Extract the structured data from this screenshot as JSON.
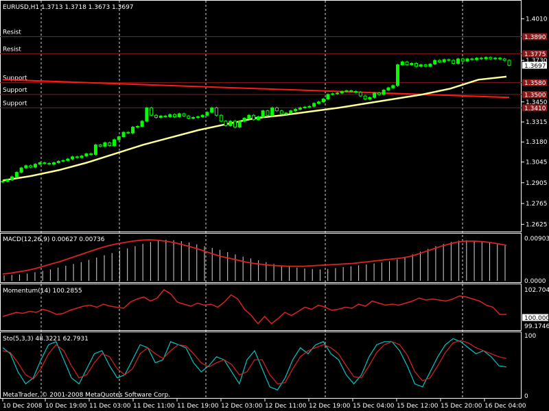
{
  "chart_data": {
    "type": "candlestick",
    "symbol_info": "EURUSD,H1  1.3713 1.3718 1.3673 1.3697",
    "price_axis": {
      "ylim": [
        1.259,
        1.41
      ],
      "ticks": [
        "1.4010",
        "1.3730",
        "1.3450",
        "1.3315",
        "1.3180",
        "1.3045",
        "1.2905",
        "1.2765",
        "1.2625"
      ],
      "current_price": "1.3697"
    },
    "horizontal_levels": [
      {
        "name": "Resist",
        "price": 1.389,
        "label": "1.3890"
      },
      {
        "name": "Resist",
        "price": 1.3775,
        "label": "1.3775"
      },
      {
        "name": "Support",
        "price": 1.358,
        "label": "1.3580"
      },
      {
        "name": "Support",
        "price": 1.35,
        "label": "1.3500"
      },
      {
        "name": "Support",
        "price": 1.341,
        "label": "1.3410"
      }
    ],
    "closes": [
      1.2915,
      1.2925,
      1.2945,
      1.2975,
      1.3005,
      1.302,
      1.301,
      1.303,
      1.304,
      1.3035,
      1.303,
      1.304,
      1.305,
      1.3055,
      1.3065,
      1.308,
      1.3075,
      1.3085,
      1.31,
      1.3095,
      1.316,
      1.315,
      1.3175,
      1.3155,
      1.3195,
      1.3215,
      1.3245,
      1.324,
      1.328,
      1.3285,
      1.332,
      1.341,
      1.336,
      1.3345,
      1.3355,
      1.335,
      1.3365,
      1.335,
      1.337,
      1.3355,
      1.334,
      1.3345,
      1.335,
      1.336,
      1.338,
      1.341,
      1.336,
      1.332,
      1.329,
      1.332,
      1.328,
      1.332,
      1.334,
      1.336,
      1.333,
      1.335,
      1.339,
      1.336,
      1.341,
      1.339,
      1.337,
      1.3375,
      1.339,
      1.34,
      1.341,
      1.3415,
      1.342,
      1.344,
      1.345,
      1.347,
      1.35,
      1.3505,
      1.351,
      1.352,
      1.3525,
      1.352,
      1.3515,
      1.349,
      1.347,
      1.348,
      1.351,
      1.35,
      1.353,
      1.3545,
      1.356,
      1.37,
      1.372,
      1.37,
      1.371,
      1.369,
      1.37,
      1.369,
      1.3705,
      1.373,
      1.372,
      1.3735,
      1.373,
      1.371,
      1.374,
      1.3725,
      1.374,
      1.3735,
      1.3745,
      1.374,
      1.375,
      1.374,
      1.3745,
      1.374,
      1.373,
      1.3697
    ],
    "moving_average": [
      1.292,
      1.295,
      1.299,
      1.304,
      1.31,
      1.316,
      1.321,
      1.326,
      1.33,
      1.334,
      1.336,
      1.3385,
      1.341,
      1.344,
      1.347,
      1.35,
      1.354,
      1.36,
      1.362
    ],
    "trend_line": {
      "from": [
        0,
        1.36
      ],
      "to": [
        109,
        1.348
      ]
    },
    "time_labels": [
      "10 Dec 2008",
      "10 Dec 19:00",
      "11 Dec 03:00",
      "11 Dec 11:00",
      "11 Dec 19:00",
      "12 Dec 03:00",
      "12 Dec 11:00",
      "12 Dec 19:00",
      "15 Dec 04:00",
      "15 Dec 12:00",
      "15 Dec 20:00",
      "16 Dec 04:00"
    ],
    "macd": {
      "label": "MACD(12,26,9) 0.00627 0.00736",
      "ticks": [
        "0.00903",
        "0.0000"
      ],
      "ylim": [
        0,
        0.0093
      ],
      "histogram": [
        0.0012,
        0.0013,
        0.0014,
        0.0016,
        0.0019,
        0.0022,
        0.0025,
        0.0029,
        0.0033,
        0.0037,
        0.0041,
        0.0046,
        0.0051,
        0.0056,
        0.0061,
        0.0066,
        0.0071,
        0.0076,
        0.0081,
        0.0085,
        0.0088,
        0.009,
        0.0089,
        0.0087,
        0.0084,
        0.008,
        0.0076,
        0.0072,
        0.0068,
        0.0063,
        0.0058,
        0.0053,
        0.0049,
        0.0045,
        0.0041,
        0.0037,
        0.0034,
        0.0031,
        0.0029,
        0.0027,
        0.0026,
        0.0025,
        0.0026,
        0.0028,
        0.003,
        0.0032,
        0.0034,
        0.0036,
        0.0038,
        0.004,
        0.0043,
        0.0047,
        0.0052,
        0.0058,
        0.0064,
        0.007,
        0.0076,
        0.0081,
        0.0085,
        0.0088,
        0.0089,
        0.0088,
        0.0086,
        0.0084,
        0.008,
        0.0077
      ],
      "signal": [
        0.0015,
        0.0017,
        0.002,
        0.0023,
        0.0027,
        0.0032,
        0.0037,
        0.0042,
        0.0048,
        0.0054,
        0.006,
        0.0066,
        0.0072,
        0.0077,
        0.0081,
        0.0084,
        0.0087,
        0.0089,
        0.009,
        0.0089,
        0.0087,
        0.0084,
        0.008,
        0.0075,
        0.007,
        0.0064,
        0.0058,
        0.0053,
        0.0049,
        0.0045,
        0.0041,
        0.0038,
        0.0036,
        0.0034,
        0.0033,
        0.0032,
        0.0032,
        0.0032,
        0.0033,
        0.0034,
        0.0035,
        0.0036,
        0.0037,
        0.0038,
        0.004,
        0.0042,
        0.0044,
        0.0046,
        0.0048,
        0.005,
        0.0053,
        0.0058,
        0.0064,
        0.007,
        0.0076,
        0.0081,
        0.0085,
        0.0087,
        0.0087,
        0.0086,
        0.0084,
        0.0081,
        0.0078
      ]
    },
    "momentum": {
      "label": "Momentum(14) 100.2855",
      "ticks": [
        "102.7041",
        "100.0000",
        "99.1746"
      ],
      "ylim": [
        98.9,
        102.9
      ],
      "values": [
        100.1,
        100.3,
        100.5,
        100.4,
        100.6,
        100.5,
        100.8,
        100.6,
        100.3,
        100.4,
        100.7,
        100.9,
        101.1,
        101.2,
        101.0,
        101.3,
        101.1,
        101.0,
        100.9,
        101.5,
        101.8,
        102.0,
        101.6,
        101.9,
        102.7,
        102.3,
        101.5,
        101.3,
        101.1,
        101.4,
        101.2,
        101.3,
        101.0,
        101.5,
        102.2,
        101.8,
        100.8,
        100.2,
        99.4,
        100.1,
        99.4,
        99.9,
        100.5,
        100.2,
        100.6,
        101.0,
        100.8,
        101.2,
        101.0,
        100.7,
        100.8,
        101.0,
        100.9,
        101.3,
        101.1,
        101.6,
        101.4,
        101.2,
        101.3,
        101.2,
        101.4,
        101.6,
        101.9,
        101.7,
        101.8,
        101.7,
        101.6,
        101.8,
        102.1,
        102.0,
        101.8,
        101.6,
        101.2,
        101.0,
        100.3,
        100.3
      ]
    },
    "stochastic": {
      "label": "Sto(5,3,3) 48.3221 62.7931",
      "ticks": [
        "100",
        "0"
      ],
      "ylim": [
        0,
        100
      ],
      "main": [
        80,
        70,
        40,
        20,
        30,
        60,
        85,
        90,
        60,
        30,
        20,
        45,
        70,
        75,
        50,
        30,
        35,
        60,
        85,
        80,
        55,
        60,
        90,
        85,
        80,
        55,
        40,
        50,
        65,
        60,
        40,
        20,
        60,
        75,
        45,
        15,
        10,
        30,
        60,
        80,
        70,
        85,
        90,
        70,
        60,
        35,
        20,
        35,
        65,
        85,
        90,
        90,
        75,
        50,
        20,
        15,
        40,
        65,
        85,
        95,
        90,
        80,
        70,
        75,
        65,
        50,
        48
      ],
      "signal": [
        75,
        72,
        55,
        35,
        28,
        45,
        70,
        85,
        75,
        50,
        30,
        35,
        55,
        70,
        65,
        45,
        35,
        45,
        70,
        80,
        70,
        62,
        75,
        85,
        83,
        70,
        55,
        48,
        55,
        60,
        52,
        35,
        40,
        60,
        60,
        35,
        20,
        22,
        45,
        65,
        75,
        80,
        85,
        80,
        70,
        50,
        32,
        30,
        50,
        72,
        85,
        90,
        85,
        68,
        40,
        25,
        30,
        50,
        72,
        88,
        92,
        88,
        80,
        75,
        70,
        65,
        62
      ]
    },
    "watermark": "MetaTrader, © 2001-2008 MetaQuotes Software Corp."
  }
}
